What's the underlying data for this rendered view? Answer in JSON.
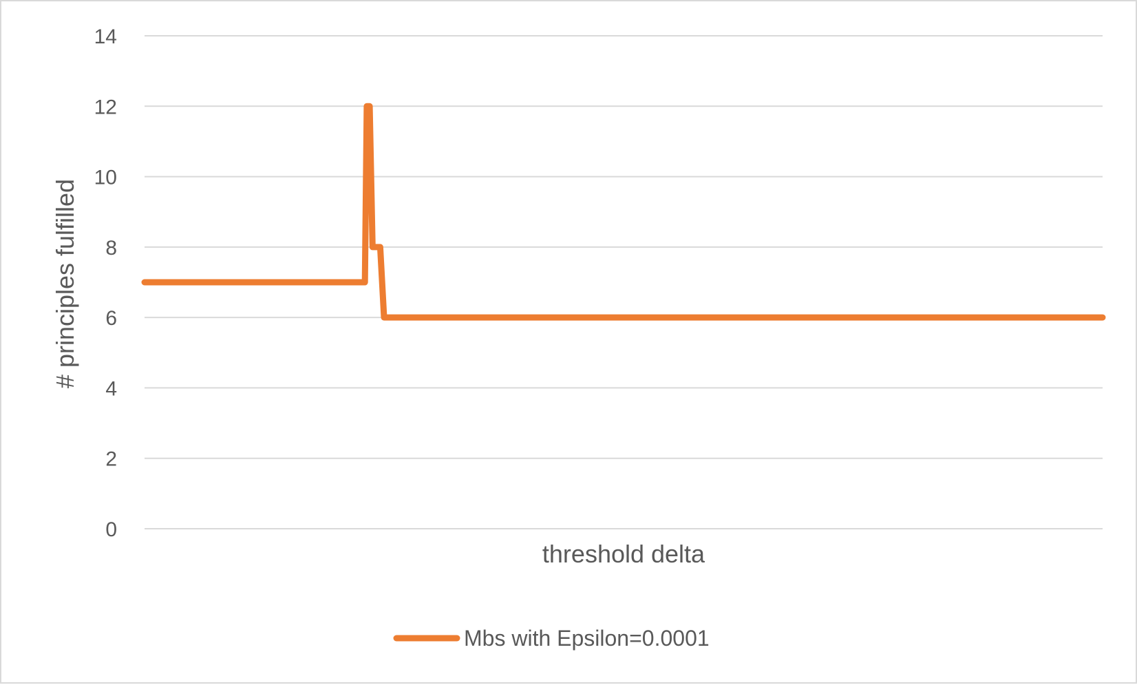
{
  "chart_data": {
    "type": "line",
    "title": "",
    "xlabel": "threshold delta",
    "ylabel": "# principles fulfilled",
    "ylim": [
      0,
      14
    ],
    "yticks": [
      0,
      2,
      4,
      6,
      8,
      10,
      12,
      14
    ],
    "grid": true,
    "legend_position": "bottom",
    "x_tick_labels_shown": false,
    "series": [
      {
        "name": "Mbs with Epsilon=0.0001",
        "color": "#ED7D31",
        "x": [
          0,
          23.0,
          23.2,
          23.5,
          23.8,
          24.2,
          24.6,
          25.0,
          100
        ],
        "y": [
          7,
          7,
          12,
          12,
          8,
          8,
          8,
          6,
          6
        ]
      }
    ]
  }
}
